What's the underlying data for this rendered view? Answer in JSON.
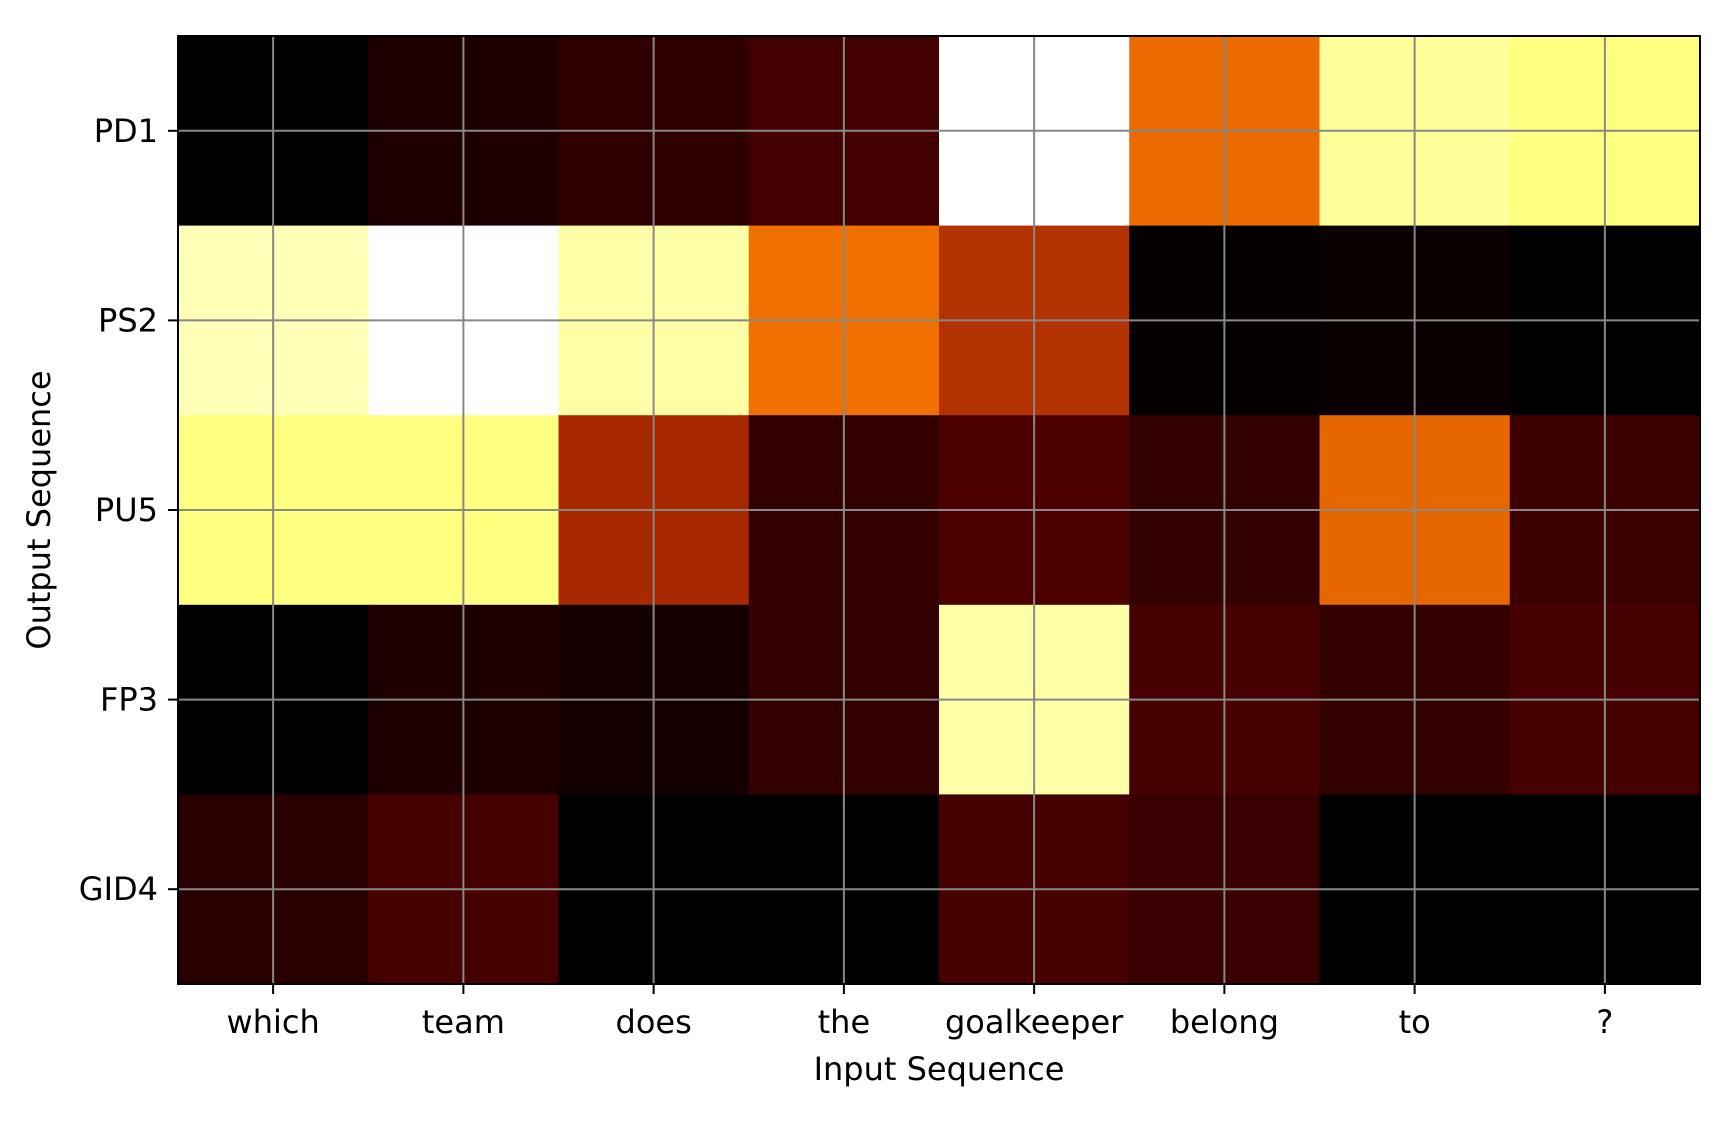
{
  "chart_data": {
    "type": "heatmap",
    "title": "",
    "xlabel": "Input Sequence",
    "ylabel": "Output Sequence",
    "x_categories": [
      "which",
      "team",
      "does",
      "the",
      "goalkeeper",
      "belong",
      "to",
      "?"
    ],
    "y_categories": [
      "PD1",
      "PS2",
      "PU5",
      "FP3",
      "GID4"
    ],
    "colormap": "afmhot",
    "value_range": [
      0,
      1
    ],
    "grid": true,
    "grid_color": "#888888",
    "values": [
      [
        0.0,
        0.06,
        0.09,
        0.13,
        1.0,
        0.46,
        0.8,
        0.75
      ],
      [
        0.86,
        1.0,
        0.83,
        0.47,
        0.35,
        0.01,
        0.02,
        0.0
      ],
      [
        0.75,
        0.75,
        0.33,
        0.1,
        0.15,
        0.1,
        0.45,
        0.12
      ],
      [
        0.0,
        0.06,
        0.04,
        0.1,
        0.83,
        0.14,
        0.1,
        0.14
      ],
      [
        0.08,
        0.14,
        0.0,
        0.0,
        0.14,
        0.11,
        0.0,
        0.0
      ]
    ]
  }
}
